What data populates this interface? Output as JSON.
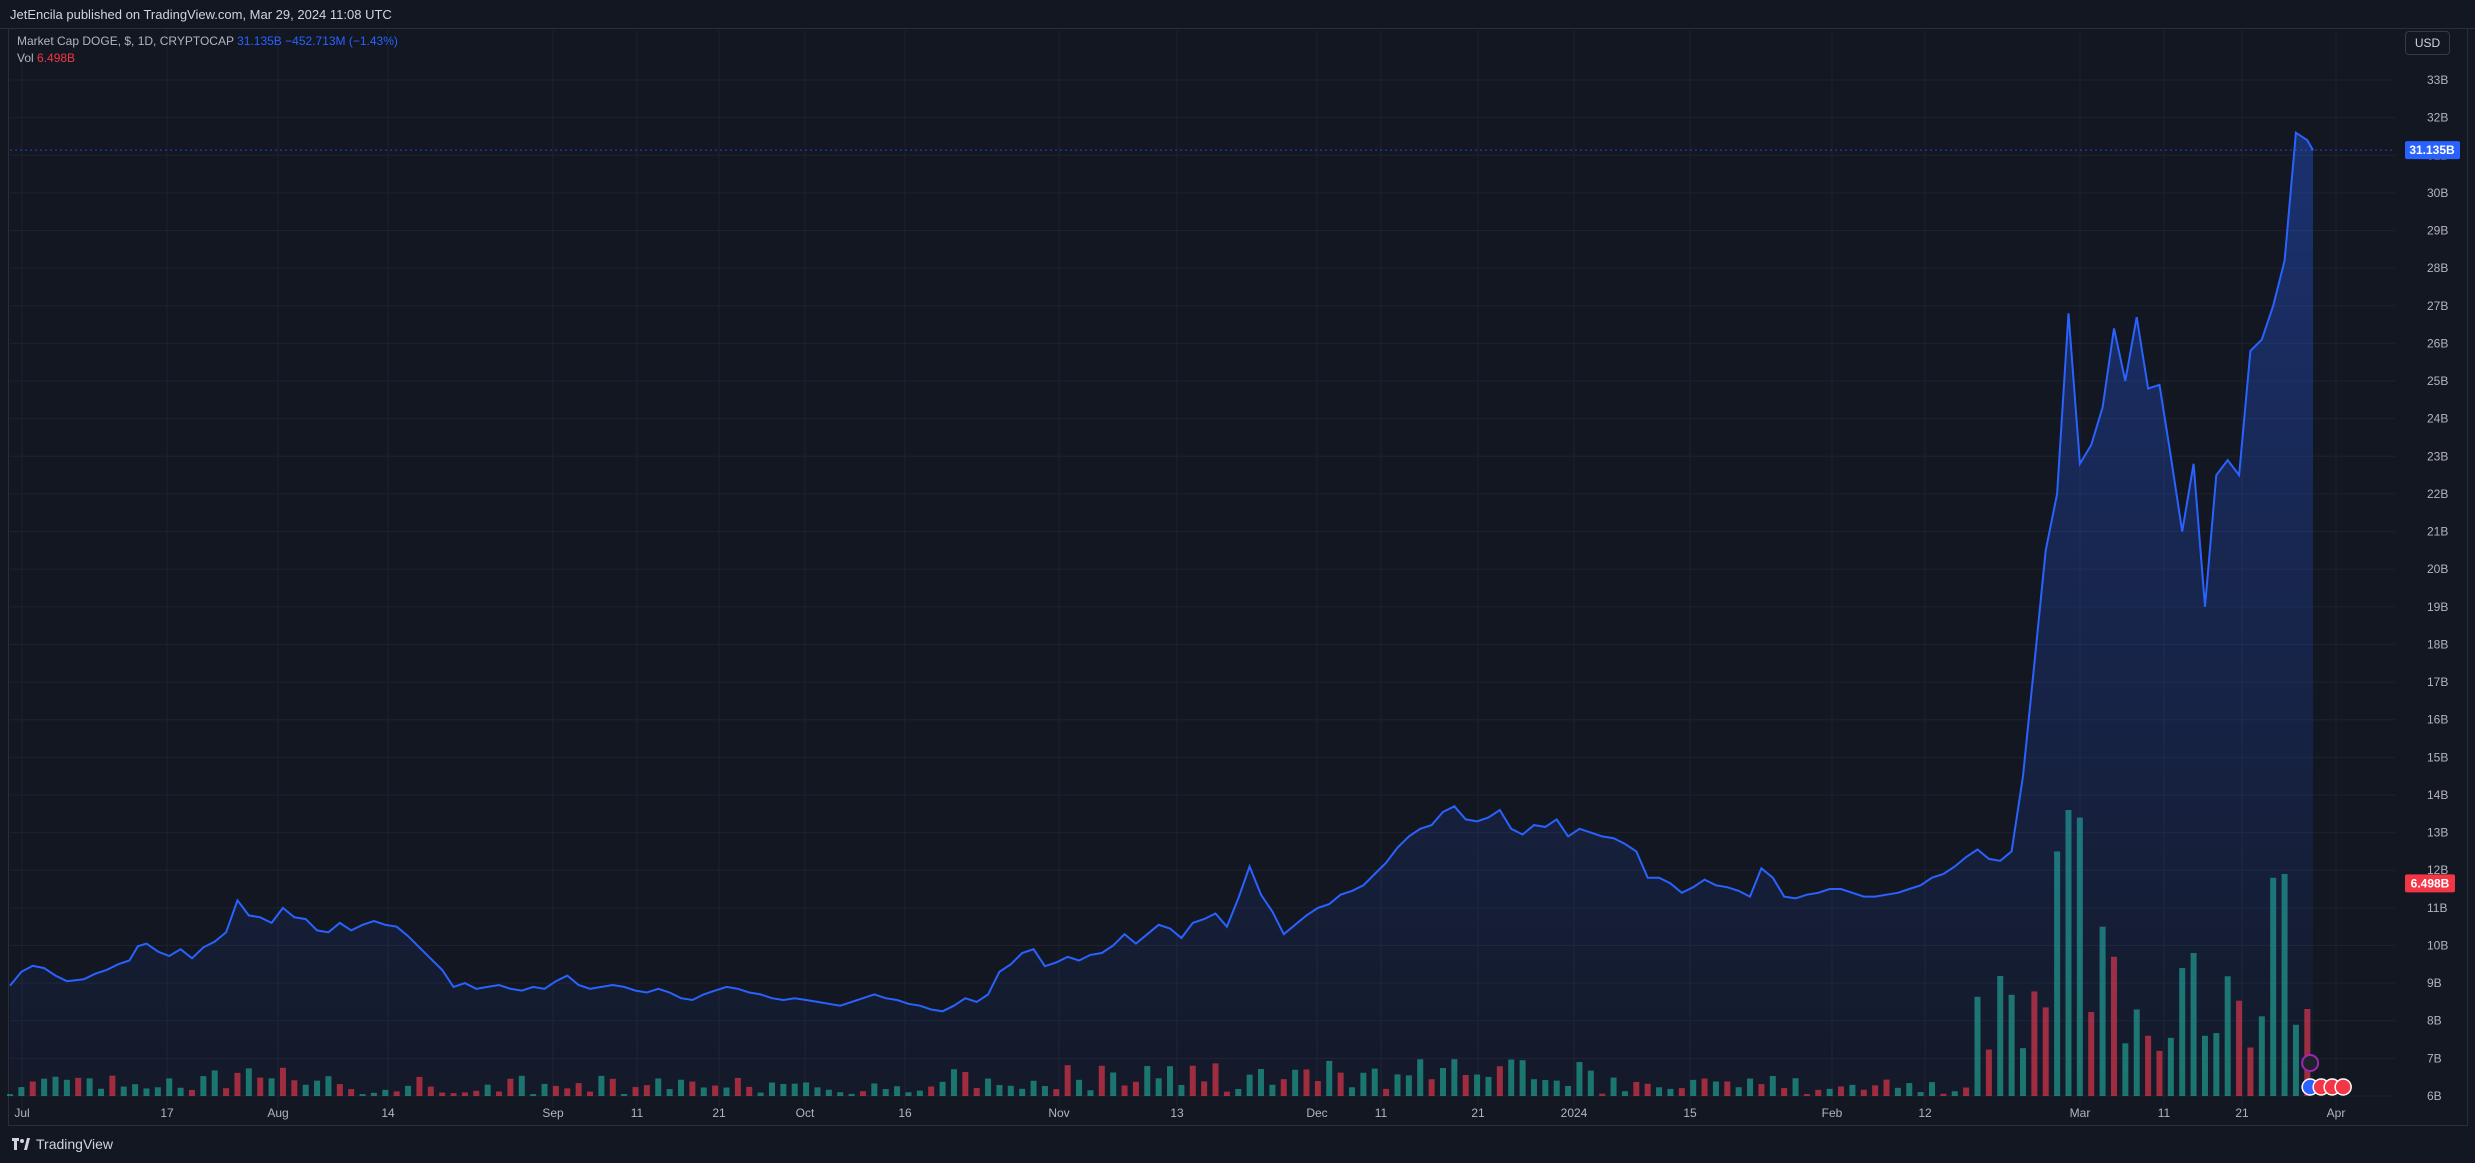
{
  "header": {
    "published": "JetEncila published on TradingView.com, Mar 29, 2024 11:08 UTC"
  },
  "legend": {
    "series_label": "Market Cap DOGE, $, 1D, CRYPTOCAP",
    "last_value": "31.135B",
    "change": "−452.713M (−1.43%)",
    "vol_label": "Vol",
    "vol_value": "6.498B"
  },
  "currency_button": "USD",
  "footer": {
    "brand": "TradingView"
  },
  "colors": {
    "background": "#131722",
    "line": "#2962ff",
    "vol_up": "#22ab94",
    "vol_down": "#f23645",
    "grid": "#1e222d"
  },
  "chart_data": {
    "type": "area",
    "y_unit": "USD",
    "ylim": [
      6,
      34
    ],
    "y_ticks": [
      "33B",
      "32B",
      "31B",
      "30B",
      "29B",
      "28B",
      "27B",
      "26B",
      "25B",
      "24B",
      "23B",
      "22B",
      "21B",
      "20B",
      "19B",
      "18B",
      "17B",
      "16B",
      "15B",
      "14B",
      "13B",
      "12B",
      "11B",
      "10B",
      "9B",
      "8B",
      "7B",
      "6B"
    ],
    "x_ticks": [
      "Jul",
      "17",
      "Aug",
      "14",
      "Sep",
      "11",
      "21",
      "Oct",
      "16",
      "Nov",
      "13",
      "Dec",
      "11",
      "21",
      "2024",
      "15",
      "Feb",
      "12",
      "Mar",
      "11",
      "21",
      "Apr"
    ],
    "last_price_label": "31.135B",
    "last_volume_label": "6.498B",
    "grid": true,
    "market_cap": [
      [
        0,
        8.93
      ],
      [
        4,
        9.3
      ],
      [
        8,
        9.46
      ],
      [
        12,
        9.4
      ],
      [
        16,
        9.2
      ],
      [
        20,
        9.05
      ],
      [
        26,
        9.1
      ],
      [
        30,
        9.25
      ],
      [
        34,
        9.35
      ],
      [
        38,
        9.5
      ],
      [
        42,
        9.6
      ],
      [
        45,
        9.98
      ],
      [
        48,
        10.05
      ],
      [
        52,
        9.84
      ],
      [
        56,
        9.72
      ],
      [
        60,
        9.9
      ],
      [
        64,
        9.66
      ],
      [
        68,
        9.95
      ],
      [
        72,
        10.1
      ],
      [
        76,
        10.35
      ],
      [
        80,
        11.2
      ],
      [
        84,
        10.8
      ],
      [
        88,
        10.75
      ],
      [
        92,
        10.6
      ],
      [
        96,
        11.0
      ],
      [
        100,
        10.75
      ],
      [
        104,
        10.7
      ],
      [
        108,
        10.4
      ],
      [
        112,
        10.35
      ],
      [
        116,
        10.6
      ],
      [
        120,
        10.4
      ],
      [
        124,
        10.55
      ],
      [
        128,
        10.65
      ],
      [
        132,
        10.55
      ],
      [
        136,
        10.5
      ],
      [
        140,
        10.25
      ],
      [
        144,
        9.95
      ],
      [
        148,
        9.65
      ],
      [
        152,
        9.35
      ],
      [
        156,
        8.9
      ],
      [
        160,
        9.0
      ],
      [
        164,
        8.85
      ],
      [
        168,
        8.9
      ],
      [
        172,
        8.95
      ],
      [
        176,
        8.85
      ],
      [
        180,
        8.8
      ],
      [
        184,
        8.9
      ],
      [
        188,
        8.85
      ],
      [
        192,
        9.05
      ],
      [
        196,
        9.2
      ],
      [
        200,
        8.95
      ],
      [
        204,
        8.85
      ],
      [
        208,
        8.9
      ],
      [
        212,
        8.95
      ],
      [
        216,
        8.9
      ],
      [
        220,
        8.8
      ],
      [
        224,
        8.75
      ],
      [
        228,
        8.85
      ],
      [
        232,
        8.75
      ],
      [
        236,
        8.6
      ],
      [
        240,
        8.55
      ],
      [
        244,
        8.7
      ],
      [
        248,
        8.8
      ],
      [
        252,
        8.9
      ],
      [
        256,
        8.85
      ],
      [
        260,
        8.75
      ],
      [
        264,
        8.7
      ],
      [
        268,
        8.6
      ],
      [
        272,
        8.55
      ],
      [
        276,
        8.6
      ],
      [
        280,
        8.55
      ],
      [
        284,
        8.5
      ],
      [
        288,
        8.45
      ],
      [
        292,
        8.4
      ],
      [
        296,
        8.5
      ],
      [
        300,
        8.6
      ],
      [
        304,
        8.7
      ],
      [
        308,
        8.6
      ],
      [
        312,
        8.55
      ],
      [
        316,
        8.45
      ],
      [
        320,
        8.4
      ],
      [
        324,
        8.3
      ],
      [
        328,
        8.25
      ],
      [
        332,
        8.4
      ],
      [
        336,
        8.6
      ],
      [
        340,
        8.5
      ],
      [
        344,
        8.7
      ],
      [
        348,
        9.3
      ],
      [
        352,
        9.5
      ],
      [
        356,
        9.8
      ],
      [
        360,
        9.9
      ],
      [
        364,
        9.45
      ],
      [
        368,
        9.55
      ],
      [
        372,
        9.7
      ],
      [
        376,
        9.6
      ],
      [
        380,
        9.75
      ],
      [
        384,
        9.8
      ],
      [
        388,
        10.0
      ],
      [
        392,
        10.3
      ],
      [
        396,
        10.05
      ],
      [
        400,
        10.3
      ],
      [
        404,
        10.55
      ],
      [
        408,
        10.45
      ],
      [
        412,
        10.2
      ],
      [
        416,
        10.6
      ],
      [
        420,
        10.7
      ],
      [
        424,
        10.85
      ],
      [
        428,
        10.5
      ],
      [
        432,
        11.25
      ],
      [
        436,
        12.1
      ],
      [
        440,
        11.35
      ],
      [
        444,
        10.9
      ],
      [
        448,
        10.3
      ],
      [
        452,
        10.55
      ],
      [
        456,
        10.8
      ],
      [
        460,
        11.0
      ],
      [
        464,
        11.1
      ],
      [
        468,
        11.35
      ],
      [
        472,
        11.45
      ],
      [
        476,
        11.6
      ],
      [
        480,
        11.9
      ],
      [
        484,
        12.2
      ],
      [
        488,
        12.6
      ],
      [
        492,
        12.9
      ],
      [
        496,
        13.1
      ],
      [
        500,
        13.2
      ],
      [
        504,
        13.55
      ],
      [
        508,
        13.7
      ],
      [
        512,
        13.35
      ],
      [
        516,
        13.3
      ],
      [
        520,
        13.4
      ],
      [
        524,
        13.6
      ],
      [
        528,
        13.1
      ],
      [
        532,
        12.95
      ],
      [
        536,
        13.2
      ],
      [
        540,
        13.15
      ],
      [
        544,
        13.35
      ],
      [
        548,
        12.9
      ],
      [
        552,
        13.1
      ],
      [
        556,
        13.0
      ],
      [
        560,
        12.9
      ],
      [
        564,
        12.85
      ],
      [
        568,
        12.7
      ],
      [
        572,
        12.5
      ],
      [
        576,
        11.8
      ],
      [
        580,
        11.8
      ],
      [
        584,
        11.65
      ],
      [
        588,
        11.4
      ],
      [
        592,
        11.55
      ],
      [
        596,
        11.75
      ],
      [
        600,
        11.6
      ],
      [
        604,
        11.55
      ],
      [
        608,
        11.45
      ],
      [
        612,
        11.3
      ],
      [
        616,
        12.05
      ],
      [
        620,
        11.8
      ],
      [
        624,
        11.3
      ],
      [
        628,
        11.25
      ],
      [
        632,
        11.35
      ],
      [
        636,
        11.4
      ],
      [
        640,
        11.5
      ],
      [
        644,
        11.5
      ],
      [
        648,
        11.4
      ],
      [
        652,
        11.3
      ],
      [
        656,
        11.3
      ],
      [
        660,
        11.35
      ],
      [
        664,
        11.4
      ],
      [
        668,
        11.5
      ],
      [
        672,
        11.6
      ],
      [
        676,
        11.8
      ],
      [
        680,
        11.9
      ],
      [
        684,
        12.1
      ],
      [
        688,
        12.35
      ],
      [
        692,
        12.55
      ],
      [
        696,
        12.3
      ],
      [
        700,
        12.25
      ],
      [
        704,
        12.5
      ],
      [
        708,
        14.5
      ],
      [
        712,
        17.5
      ],
      [
        716,
        20.5
      ],
      [
        720,
        22.0
      ],
      [
        724,
        26.8
      ],
      [
        728,
        22.8
      ],
      [
        732,
        23.3
      ],
      [
        736,
        24.3
      ],
      [
        740,
        26.4
      ],
      [
        744,
        25.0
      ],
      [
        748,
        26.7
      ],
      [
        752,
        24.8
      ],
      [
        756,
        24.9
      ],
      [
        760,
        23.0
      ],
      [
        764,
        21.0
      ],
      [
        768,
        22.8
      ],
      [
        772,
        19.0
      ],
      [
        776,
        22.5
      ],
      [
        780,
        22.9
      ],
      [
        784,
        22.5
      ],
      [
        788,
        25.8
      ],
      [
        792,
        26.1
      ],
      [
        796,
        27.0
      ],
      [
        800,
        28.2
      ],
      [
        804,
        31.6
      ],
      [
        808,
        31.4
      ],
      [
        810,
        31.135
      ]
    ],
    "volume_up_ratio": 0.6,
    "volume_spikes": [
      [
        720,
        12.5
      ],
      [
        724,
        13.6
      ],
      [
        728,
        13.4
      ],
      [
        736,
        10.5
      ],
      [
        740,
        9.7
      ],
      [
        744,
        7.4
      ],
      [
        748,
        8.3
      ],
      [
        752,
        7.6
      ],
      [
        756,
        7.2
      ],
      [
        764,
        9.4
      ],
      [
        768,
        9.8
      ],
      [
        772,
        7.6
      ],
      [
        796,
        11.8
      ],
      [
        800,
        11.9
      ]
    ]
  }
}
